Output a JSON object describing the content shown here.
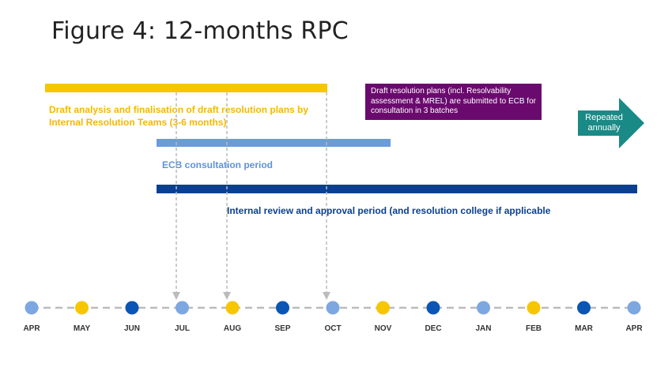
{
  "title": "Figure 4: 12-months RPC",
  "phases": {
    "draft_analysis": "Draft analysis and finalisation of draft resolution plans by Internal Resolution Teams (3-6 months)",
    "ecb_consultation": "ECB consultation period",
    "internal_review": "Internal review and approval period (and resolution college if applicable"
  },
  "callout": {
    "text": "Draft resolution plans (incl. Resolvability assessment & MREL) are submitted to ECB for consultation in 3 batches",
    "color": "#6B0A6E"
  },
  "repeat_arrow": {
    "text": "Repeated annually",
    "color": "#1A8A86"
  },
  "colors": {
    "yellow": "#F6C700",
    "light_blue": "#6A9BDB",
    "navy": "#0B3F8F",
    "dash": "#BBBBBB"
  },
  "timeline": {
    "months": [
      {
        "label": "APR",
        "color": "#7DA7E0"
      },
      {
        "label": "MAY",
        "color": "#F6C700"
      },
      {
        "label": "JUN",
        "color": "#0B55B5"
      },
      {
        "label": "JUL",
        "color": "#7DA7E0"
      },
      {
        "label": "AUG",
        "color": "#F6C700"
      },
      {
        "label": "SEP",
        "color": "#0B55B5"
      },
      {
        "label": "OCT",
        "color": "#7DA7E0"
      },
      {
        "label": "NOV",
        "color": "#F6C700"
      },
      {
        "label": "DEC",
        "color": "#0B55B5"
      },
      {
        "label": "JAN",
        "color": "#7DA7E0"
      },
      {
        "label": "FEB",
        "color": "#F6C700"
      },
      {
        "label": "MAR",
        "color": "#0B55B5"
      },
      {
        "label": "APR",
        "color": "#7DA7E0"
      }
    ],
    "submission_months": [
      "JUL",
      "AUG",
      "OCT"
    ]
  }
}
